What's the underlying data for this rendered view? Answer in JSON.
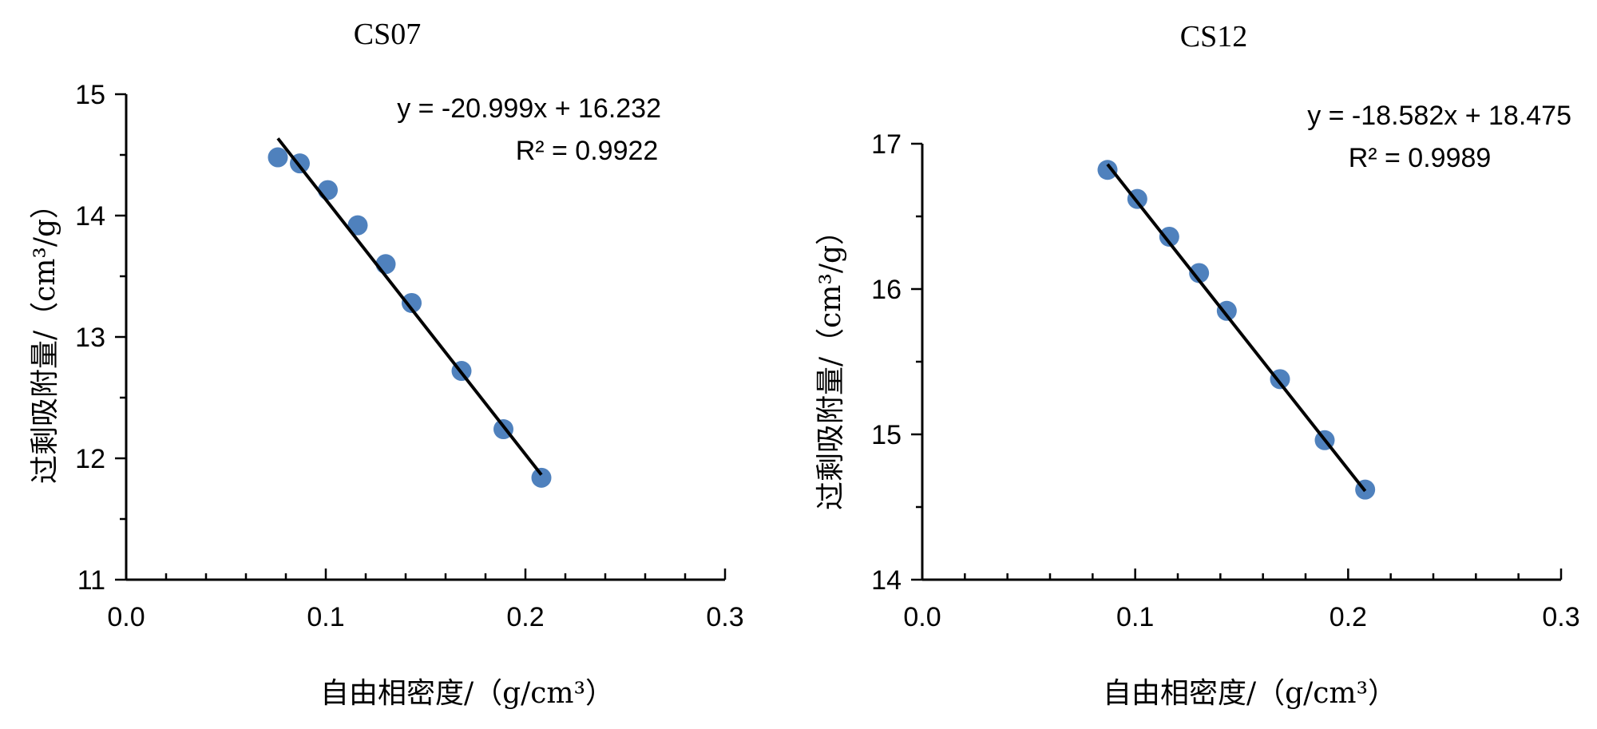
{
  "chart_data": [
    {
      "type": "scatter",
      "title": "CS07",
      "xlabel": "自由相密度/（g/cm³）",
      "ylabel": "过剩吸附量/（cm³/g）",
      "xlim": [
        0.0,
        0.3
      ],
      "ylim": [
        11,
        15
      ],
      "x_ticks": [
        0.0,
        0.1,
        0.2,
        0.3
      ],
      "x_tick_labels": [
        "0.0",
        "0.1",
        "0.2",
        "0.3"
      ],
      "y_ticks": [
        11,
        12,
        13,
        14,
        15
      ],
      "y_tick_labels": [
        "11",
        "12",
        "13",
        "14",
        "15"
      ],
      "marker_color": "#4f81bd",
      "series": [
        {
          "name": "CS07",
          "x": [
            0.076,
            0.087,
            0.101,
            0.116,
            0.13,
            0.143,
            0.168,
            0.189,
            0.208
          ],
          "y": [
            14.48,
            14.43,
            14.21,
            13.92,
            13.6,
            13.28,
            12.72,
            12.24,
            11.84
          ]
        }
      ],
      "trendline": {
        "slope": -20.999,
        "intercept": 16.232,
        "x_range": [
          0.076,
          0.208
        ],
        "equation": "y = -20.999x + 16.232",
        "r2": "R² = 0.9922"
      },
      "grid": false
    },
    {
      "type": "scatter",
      "title": "CS12",
      "xlabel": "自由相密度/（g/cm³）",
      "ylabel": "过剩吸附量/（cm³/g）",
      "xlim": [
        0.0,
        0.3
      ],
      "ylim": [
        14,
        17
      ],
      "x_ticks": [
        0.0,
        0.1,
        0.2,
        0.3
      ],
      "x_tick_labels": [
        "0.0",
        "0.1",
        "0.2",
        "0.3"
      ],
      "y_ticks": [
        14,
        15,
        16,
        17
      ],
      "y_tick_labels": [
        "14",
        "15",
        "16",
        "17"
      ],
      "marker_color": "#4f81bd",
      "series": [
        {
          "name": "CS12",
          "x": [
            0.087,
            0.101,
            0.116,
            0.13,
            0.143,
            0.168,
            0.189,
            0.208
          ],
          "y": [
            16.82,
            16.62,
            16.36,
            16.11,
            15.85,
            15.38,
            14.96,
            14.62
          ]
        }
      ],
      "trendline": {
        "slope": -18.582,
        "intercept": 18.475,
        "x_range": [
          0.087,
          0.208
        ],
        "equation": "y = -18.582x + 18.475",
        "r2": "R² = 0.9989"
      },
      "grid": false
    }
  ]
}
